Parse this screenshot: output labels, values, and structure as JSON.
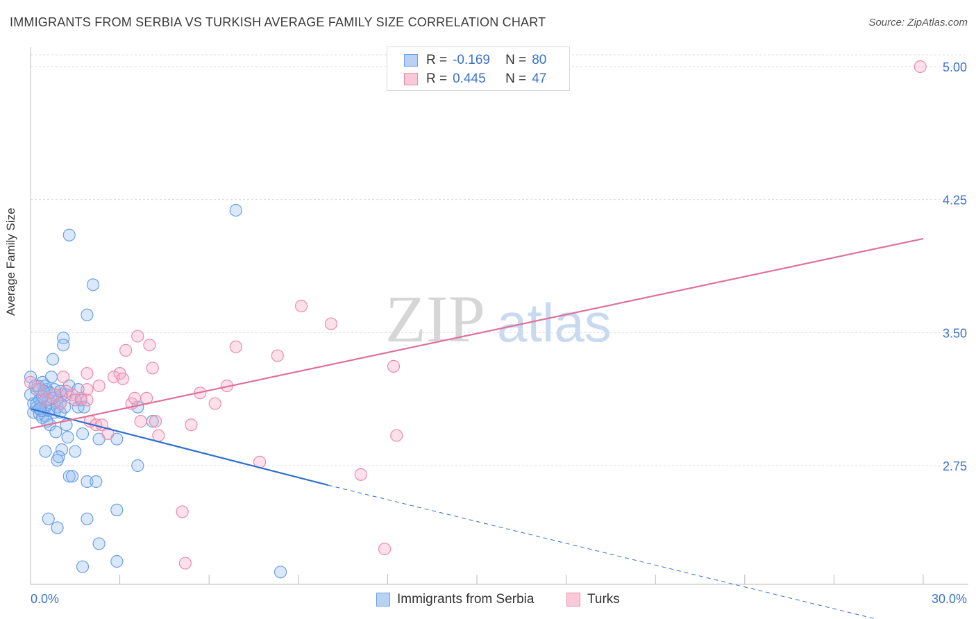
{
  "title": "IMMIGRANTS FROM SERBIA VS TURKISH AVERAGE FAMILY SIZE CORRELATION CHART",
  "source": "Source: ZipAtlas.com",
  "watermark": {
    "zip": "ZIP",
    "atlas": "atlas"
  },
  "legend": {
    "r_label": "R =",
    "n_label": "N =",
    "rows": [
      {
        "r": "-0.169",
        "n": "80",
        "color": "#6aa0e8",
        "fill": "#b9d2f4"
      },
      {
        "r": "0.445",
        "n": "47",
        "color": "#ee8aab",
        "fill": "#f9c9d8"
      }
    ]
  },
  "bottom_legend": [
    "Immigrants from Serbia",
    "Turks"
  ],
  "chart_data": {
    "type": "scatter",
    "title": "IMMIGRANTS FROM SERBIA VS TURKISH AVERAGE FAMILY SIZE CORRELATION CHART",
    "xlabel": "",
    "ylabel": "Average Family Size",
    "xlim": [
      0,
      30
    ],
    "ylim": [
      2.0,
      5.1
    ],
    "x_tick_labels": [
      "0.0%",
      "30.0%"
    ],
    "y_ticks": [
      2.75,
      3.5,
      4.25,
      5.0
    ],
    "y_tick_labels": [
      "2.75",
      "3.50",
      "4.25",
      "5.00"
    ],
    "grid": true,
    "legend_position": "top-center",
    "series": [
      {
        "name": "Immigrants from Serbia",
        "color": "#6aa0e8",
        "trend": {
          "x": [
            0,
            10
          ],
          "y": [
            3.07,
            2.64
          ],
          "dashed_to": [
            30,
            1.82
          ]
        },
        "points": [
          [
            0.0,
            3.25
          ],
          [
            0.0,
            3.15
          ],
          [
            0.1,
            3.1
          ],
          [
            0.1,
            3.05
          ],
          [
            0.2,
            3.18
          ],
          [
            0.2,
            3.08
          ],
          [
            0.3,
            3.12
          ],
          [
            0.3,
            3.04
          ],
          [
            0.35,
            3.1
          ],
          [
            0.4,
            3.02
          ],
          [
            0.4,
            3.22
          ],
          [
            0.45,
            3.15
          ],
          [
            0.5,
            3.08
          ],
          [
            0.5,
            3.03
          ],
          [
            0.55,
            3.18
          ],
          [
            0.6,
            3.12
          ],
          [
            0.6,
            3.06
          ],
          [
            0.65,
            2.98
          ],
          [
            0.7,
            3.25
          ],
          [
            0.7,
            3.1
          ],
          [
            0.75,
            3.35
          ],
          [
            0.8,
            3.18
          ],
          [
            0.8,
            3.05
          ],
          [
            0.85,
            2.94
          ],
          [
            0.9,
            3.12
          ],
          [
            0.9,
            3.08
          ],
          [
            1.0,
            3.1
          ],
          [
            1.0,
            3.05
          ],
          [
            1.05,
            3.15
          ],
          [
            1.1,
            3.47
          ],
          [
            1.1,
            3.43
          ],
          [
            1.15,
            3.08
          ],
          [
            1.2,
            3.15
          ],
          [
            1.2,
            2.98
          ],
          [
            1.25,
            2.91
          ],
          [
            1.3,
            4.05
          ],
          [
            1.05,
            2.84
          ],
          [
            0.95,
            2.8
          ],
          [
            0.9,
            2.78
          ],
          [
            1.3,
            2.69
          ],
          [
            1.4,
            2.69
          ],
          [
            1.3,
            3.2
          ],
          [
            1.5,
            2.83
          ],
          [
            1.6,
            3.18
          ],
          [
            1.5,
            3.12
          ],
          [
            1.6,
            3.08
          ],
          [
            1.7,
            3.12
          ],
          [
            1.75,
            2.93
          ],
          [
            1.8,
            3.08
          ],
          [
            0.5,
            3.2
          ],
          [
            0.45,
            3.17
          ],
          [
            0.35,
            3.06
          ],
          [
            0.25,
            3.2
          ],
          [
            2.1,
            3.77
          ],
          [
            1.9,
            3.6
          ],
          [
            1.9,
            2.66
          ],
          [
            2.2,
            2.66
          ],
          [
            2.3,
            2.31
          ],
          [
            2.3,
            2.9
          ],
          [
            2.9,
            2.9
          ],
          [
            2.9,
            2.5
          ],
          [
            2.9,
            2.21
          ],
          [
            3.6,
            3.08
          ],
          [
            3.6,
            2.75
          ],
          [
            4.1,
            3.0
          ],
          [
            6.9,
            4.19
          ],
          [
            8.4,
            2.15
          ],
          [
            0.5,
            2.83
          ],
          [
            0.6,
            2.45
          ],
          [
            0.9,
            2.4
          ],
          [
            1.9,
            2.45
          ],
          [
            1.75,
            2.18
          ],
          [
            0.2,
            3.1
          ],
          [
            0.4,
            3.14
          ],
          [
            0.55,
            3.0
          ],
          [
            0.3,
            3.07
          ],
          [
            0.65,
            3.16
          ],
          [
            0.15,
            3.2
          ],
          [
            0.75,
            3.13
          ],
          [
            1.0,
            3.17
          ]
        ]
      },
      {
        "name": "Turks",
        "color": "#ee8aab",
        "trend": {
          "x": [
            0,
            30
          ],
          "y": [
            2.96,
            4.03
          ]
        },
        "points": [
          [
            0.0,
            3.22
          ],
          [
            0.3,
            3.18
          ],
          [
            0.5,
            3.12
          ],
          [
            0.8,
            3.15
          ],
          [
            1.0,
            3.1
          ],
          [
            1.1,
            3.25
          ],
          [
            1.4,
            3.15
          ],
          [
            1.5,
            3.12
          ],
          [
            1.7,
            3.13
          ],
          [
            1.9,
            3.18
          ],
          [
            1.9,
            3.12
          ],
          [
            1.9,
            3.27
          ],
          [
            2.0,
            3.0
          ],
          [
            2.2,
            2.98
          ],
          [
            2.3,
            3.2
          ],
          [
            2.4,
            2.98
          ],
          [
            2.6,
            2.93
          ],
          [
            2.8,
            3.25
          ],
          [
            3.0,
            3.27
          ],
          [
            3.1,
            3.24
          ],
          [
            3.2,
            3.4
          ],
          [
            3.4,
            3.1
          ],
          [
            3.5,
            3.13
          ],
          [
            3.6,
            3.48
          ],
          [
            3.7,
            3.0
          ],
          [
            3.9,
            3.13
          ],
          [
            4.0,
            3.43
          ],
          [
            4.1,
            3.3
          ],
          [
            4.2,
            3.0
          ],
          [
            4.3,
            2.92
          ],
          [
            5.1,
            2.49
          ],
          [
            5.2,
            2.2
          ],
          [
            5.4,
            2.98
          ],
          [
            5.7,
            3.16
          ],
          [
            6.2,
            3.1
          ],
          [
            6.6,
            3.2
          ],
          [
            6.9,
            3.42
          ],
          [
            7.7,
            2.77
          ],
          [
            8.3,
            3.37
          ],
          [
            9.1,
            3.65
          ],
          [
            10.1,
            3.55
          ],
          [
            11.1,
            2.7
          ],
          [
            11.9,
            2.28
          ],
          [
            12.2,
            3.31
          ],
          [
            12.3,
            2.92
          ],
          [
            29.9,
            5.0
          ],
          [
            1.2,
            3.17
          ]
        ]
      }
    ]
  }
}
